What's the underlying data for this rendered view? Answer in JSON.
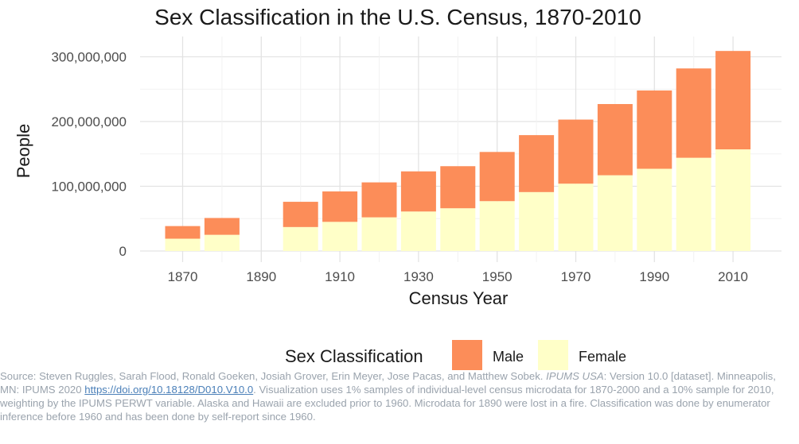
{
  "chart_data": {
    "type": "bar",
    "stacked": true,
    "title": "Sex Classification in the U.S. Census, 1870-2010",
    "xlabel": "Census Year",
    "ylabel": "People",
    "categories": [
      "1870",
      "1880",
      "1890",
      "1900",
      "1910",
      "1920",
      "1930",
      "1940",
      "1950",
      "1960",
      "1970",
      "1980",
      "1990",
      "2000",
      "2010"
    ],
    "x_ticks": [
      "1870",
      "1890",
      "1910",
      "1930",
      "1950",
      "1970",
      "1990",
      "2010"
    ],
    "y_ticks": [
      0,
      100000000,
      200000000,
      300000000
    ],
    "y_tick_labels": [
      "0",
      "100,000,000",
      "200,000,000",
      "300,000,000"
    ],
    "ylim": [
      0,
      320000000
    ],
    "grid": true,
    "legend": {
      "title": "Sex Classification",
      "placement": "bottom"
    },
    "series": [
      {
        "name": "Female",
        "color": "#ffffc8",
        "values": [
          19000000,
          25000000,
          null,
          37000000,
          45000000,
          52000000,
          61000000,
          66000000,
          77000000,
          91000000,
          104000000,
          117000000,
          127000000,
          144000000,
          157000000
        ]
      },
      {
        "name": "Male",
        "color": "#fc8d59",
        "values": [
          19500000,
          26000000,
          null,
          39000000,
          47000000,
          54000000,
          62000000,
          65000000,
          76000000,
          88000000,
          99000000,
          110000000,
          121000000,
          138000000,
          152000000
        ]
      }
    ],
    "legend_order": [
      "Male",
      "Female"
    ]
  },
  "source": {
    "prefix": "Source: Steven Ruggles, Sarah Flood, Ronald Goeken, Josiah Grover, Erin Meyer, Jose Pacas, and Matthew Sobek. ",
    "italic": "IPUMS USA",
    "middle": ": Version 10.0 [dataset]. Minneapolis, MN: IPUMS 2020 ",
    "link": "https://doi.org/10.18128/D010.V10.0",
    "suffix": ". Visualization uses 1% samples of individual-level census microdata for 1870-2000 and a 10% sample for 2010, weighting by the IPUMS PERWT variable. Alaska and Hawaii are excluded prior to 1960. Microdata for 1890 were lost in a fire. Classification was done by enumerator inference before 1960 and has been done by self-report since 1960."
  }
}
